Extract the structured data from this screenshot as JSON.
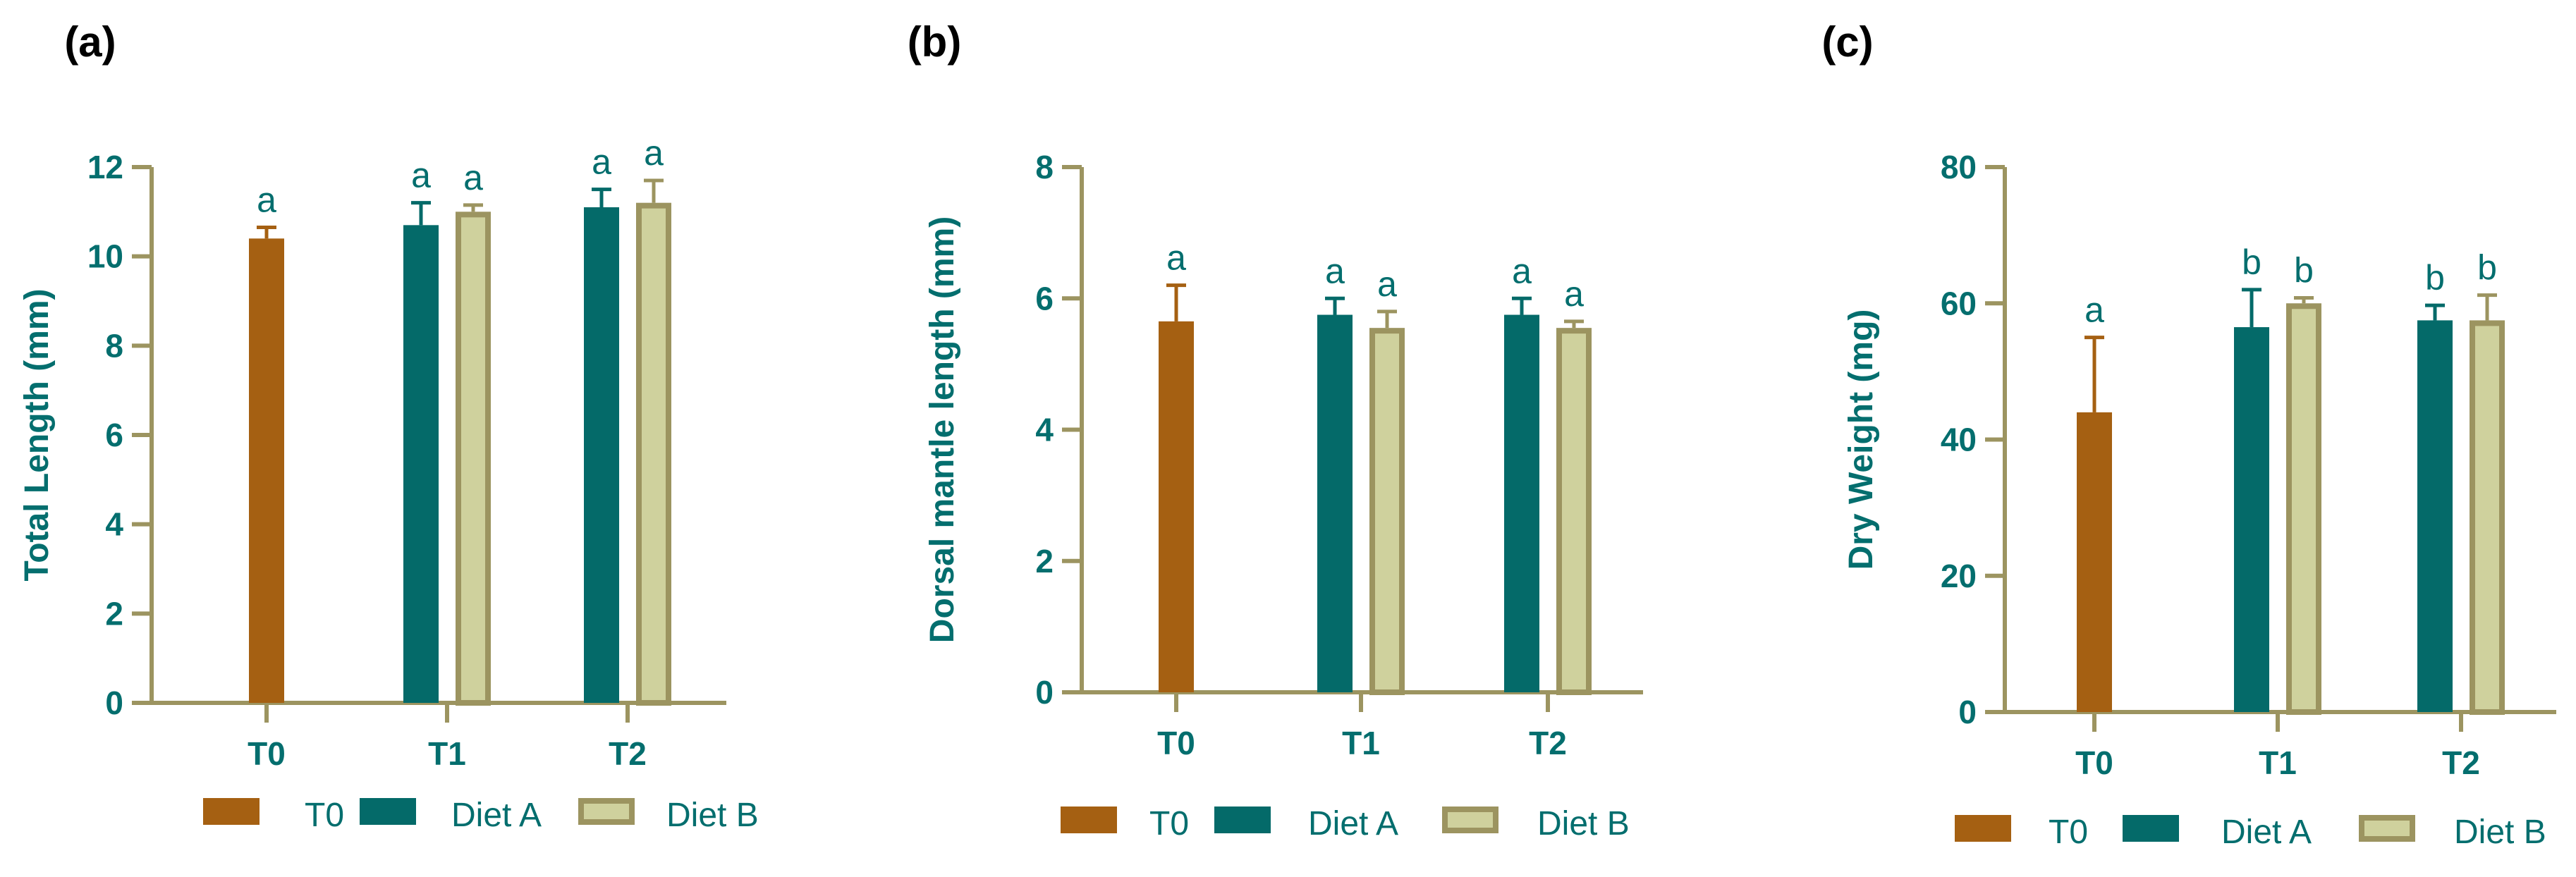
{
  "colors": {
    "axis": "#9c9460",
    "text": "#046e6e",
    "t0": "#a56012",
    "diet_a": "#046a69",
    "diet_b_fill": "#cfd19d",
    "diet_b_edge": "#9c9460",
    "panel_label": "#000000"
  },
  "legend": {
    "t0": "T0",
    "diet_a": "Diet A",
    "diet_b": "Diet B"
  },
  "chart_data": [
    {
      "panel": "(a)",
      "type": "bar",
      "ylabel": "Total Length  (mm)",
      "xlabel": "",
      "ylim": [
        0,
        12
      ],
      "yticks": [
        "0",
        "2",
        "4",
        "6",
        "8",
        "10",
        "12"
      ],
      "categories": [
        "T0",
        "T1",
        "T2"
      ],
      "series": [
        {
          "name": "T0",
          "values": [
            10.4,
            null,
            null
          ],
          "errors": [
            0.25,
            null,
            null
          ],
          "letters": [
            "a",
            null,
            null
          ]
        },
        {
          "name": "Diet A",
          "values": [
            null,
            10.7,
            11.1
          ],
          "errors": [
            null,
            0.5,
            0.4
          ],
          "letters": [
            null,
            "a",
            "a"
          ]
        },
        {
          "name": "Diet B",
          "values": [
            null,
            11.0,
            11.2
          ],
          "errors": [
            null,
            0.15,
            0.5
          ],
          "letters": [
            null,
            "a",
            "a"
          ]
        }
      ]
    },
    {
      "panel": "(b)",
      "type": "bar",
      "ylabel": "Dorsal mantle length (mm)",
      "xlabel": "",
      "ylim": [
        0,
        8
      ],
      "yticks": [
        "0",
        "2",
        "4",
        "6",
        "8"
      ],
      "categories": [
        "T0",
        "T1",
        "T2"
      ],
      "series": [
        {
          "name": "T0",
          "values": [
            5.65,
            null,
            null
          ],
          "errors": [
            0.55,
            null,
            null
          ],
          "letters": [
            "a",
            null,
            null
          ]
        },
        {
          "name": "Diet A",
          "values": [
            null,
            5.75,
            5.75
          ],
          "errors": [
            null,
            0.25,
            0.25
          ],
          "letters": [
            null,
            "a",
            "a"
          ]
        },
        {
          "name": "Diet B",
          "values": [
            null,
            5.55,
            5.55
          ],
          "errors": [
            null,
            0.25,
            0.1
          ],
          "letters": [
            null,
            "a",
            "a"
          ]
        }
      ]
    },
    {
      "panel": "(c)",
      "type": "bar",
      "ylabel": "Dry Weight (mg)",
      "xlabel": "",
      "ylim": [
        0,
        80
      ],
      "yticks": [
        "0",
        "20",
        "40",
        "60",
        "80"
      ],
      "categories": [
        "T0",
        "T1",
        "T2"
      ],
      "series": [
        {
          "name": "T0",
          "values": [
            44,
            null,
            null
          ],
          "errors": [
            11,
            null,
            null
          ],
          "letters": [
            "a",
            null,
            null
          ]
        },
        {
          "name": "Diet A",
          "values": [
            null,
            56.5,
            57.5
          ],
          "errors": [
            null,
            5.5,
            2.2
          ],
          "letters": [
            null,
            "b",
            "b"
          ]
        },
        {
          "name": "Diet B",
          "values": [
            null,
            60,
            57.5
          ],
          "errors": [
            null,
            0.8,
            3.7
          ],
          "letters": [
            null,
            "b",
            "b"
          ]
        }
      ]
    }
  ]
}
